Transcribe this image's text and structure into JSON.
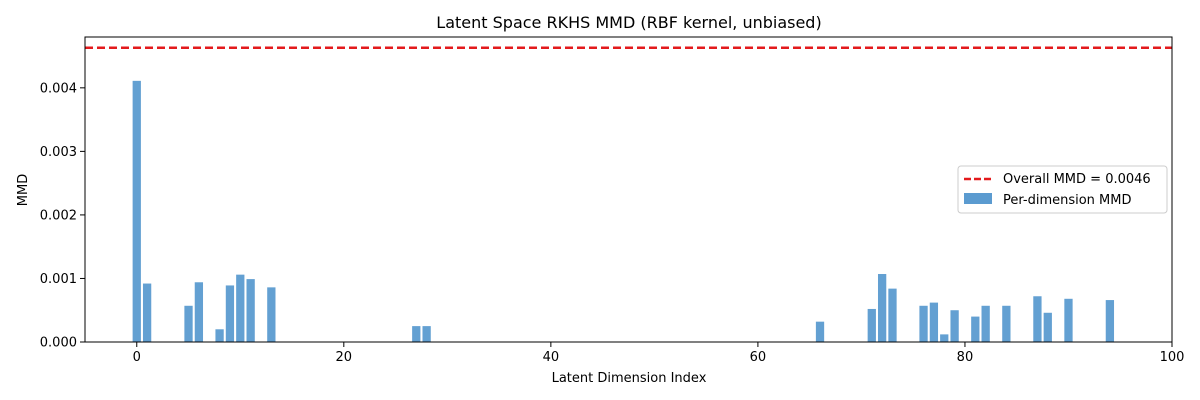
{
  "chart_data": {
    "type": "bar",
    "title": "Latent Space RKHS MMD (RBF kernel, unbiased)",
    "xlabel": "Latent Dimension Index",
    "ylabel": "MMD",
    "xlim": [
      -5,
      100
    ],
    "ylim": [
      0,
      0.0048
    ],
    "xticks": [
      0,
      20,
      40,
      60,
      80,
      100
    ],
    "xtick_labels": [
      "0",
      "20",
      "40",
      "60",
      "80",
      "100"
    ],
    "yticks": [
      0,
      0.001,
      0.002,
      0.003,
      0.004
    ],
    "ytick_labels": [
      "0.000",
      "0.001",
      "0.002",
      "0.003",
      "0.004"
    ],
    "grid": false,
    "legend_position": "center-right",
    "bar_color": "#5b9bd0",
    "line_color": "#e31a1c",
    "series": [
      {
        "name": "Per-dimension MMD",
        "kind": "bar",
        "x": [
          0,
          1,
          5,
          6,
          8,
          9,
          10,
          11,
          13,
          27,
          28,
          66,
          71,
          72,
          73,
          76,
          77,
          78,
          79,
          81,
          82,
          84,
          87,
          88,
          90,
          94
        ],
        "values": [
          0.00411,
          0.00092,
          0.00057,
          0.00094,
          0.0002,
          0.00089,
          0.00106,
          0.00099,
          0.00086,
          0.00025,
          0.00025,
          0.00032,
          0.00052,
          0.00107,
          0.00084,
          0.00057,
          0.00062,
          0.00012,
          0.0005,
          0.0004,
          0.00057,
          0.00057,
          0.00072,
          0.00046,
          0.00068,
          0.00066
        ]
      },
      {
        "name": "Overall MMD = 0.0046",
        "kind": "hline",
        "value": 0.00463
      }
    ]
  }
}
